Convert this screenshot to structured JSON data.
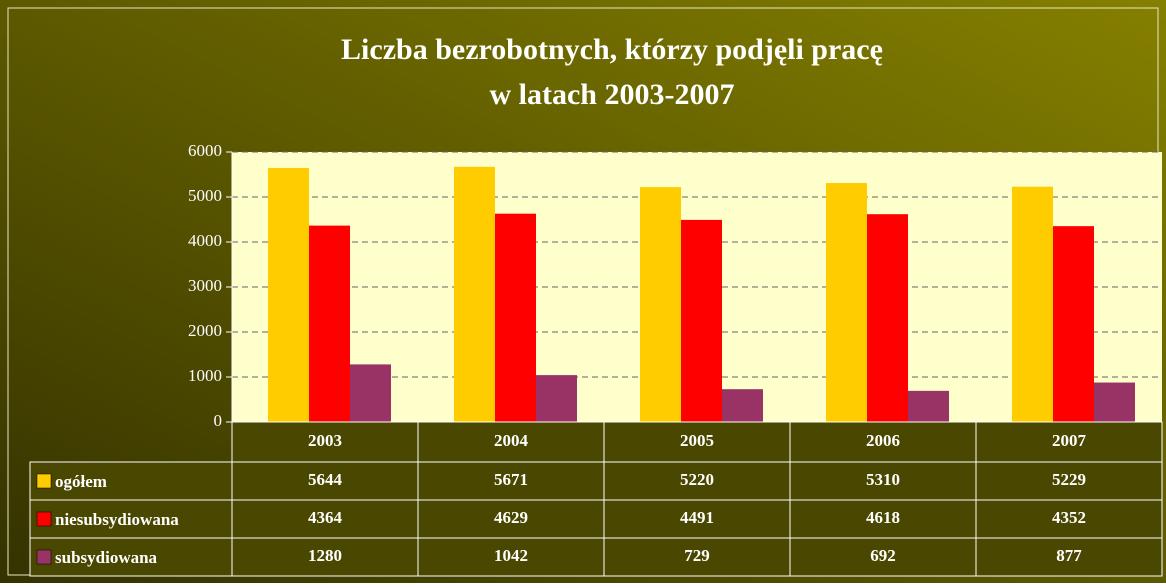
{
  "chart_data": {
    "type": "bar",
    "title": [
      "Liczba bezrobotnych, którzy podjęli pracę",
      "w latach 2003-2007"
    ],
    "categories": [
      "2003",
      "2004",
      "2005",
      "2006",
      "2007"
    ],
    "series": [
      {
        "name": "ogółem",
        "color": "#ffcc00",
        "values": [
          5644,
          5671,
          5220,
          5310,
          5229
        ]
      },
      {
        "name": "niesubsydiowana",
        "color": "#ff0000",
        "values": [
          4364,
          4629,
          4491,
          4618,
          4352
        ]
      },
      {
        "name": "subsydiowana",
        "color": "#993366",
        "values": [
          1280,
          1042,
          729,
          692,
          877
        ]
      }
    ],
    "ylim": [
      0,
      6000
    ],
    "yticks": [
      0,
      1000,
      2000,
      3000,
      4000,
      5000,
      6000
    ],
    "grid": true
  }
}
